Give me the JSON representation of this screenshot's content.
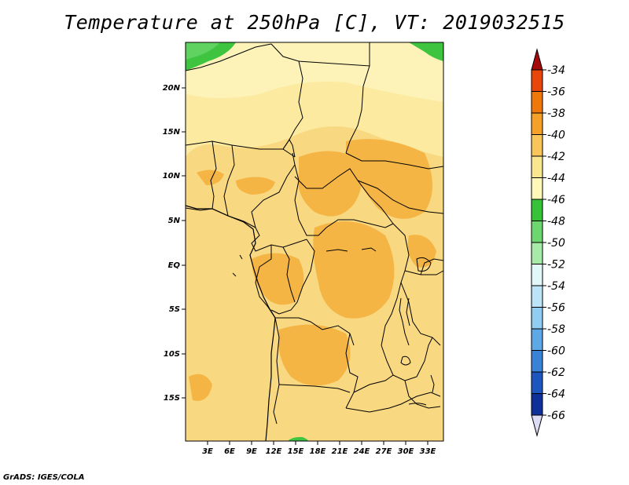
{
  "title": "Temperature at 250hPa [C], VT: 2019032515",
  "credit": "GrADS: IGES/COLA",
  "map": {
    "lon_labels": [
      "3E",
      "6E",
      "9E",
      "12E",
      "15E",
      "18E",
      "21E",
      "24E",
      "27E",
      "30E",
      "33E"
    ],
    "lat_labels": [
      "20N",
      "15N",
      "10N",
      "5N",
      "EQ",
      "5S",
      "10S",
      "15S"
    ]
  },
  "colorbar": {
    "labels": [
      "-34",
      "-36",
      "-38",
      "-40",
      "-42",
      "-44",
      "-46",
      "-48",
      "-50",
      "-52",
      "-54",
      "-56",
      "-58",
      "-60",
      "-62",
      "-64",
      "-66"
    ],
    "colors": [
      "#a50a0a",
      "#e8460a",
      "#f0780a",
      "#f5a028",
      "#f7c55a",
      "#fbe690",
      "#fff8b8",
      "#38c238",
      "#6ed66e",
      "#a8eba8",
      "#e2f8f8",
      "#bce4f8",
      "#90cdf0",
      "#5ea8e6",
      "#3a82d8",
      "#1e56c0",
      "#0f2f9a",
      "#081c66",
      "#dcdcf5"
    ]
  }
}
